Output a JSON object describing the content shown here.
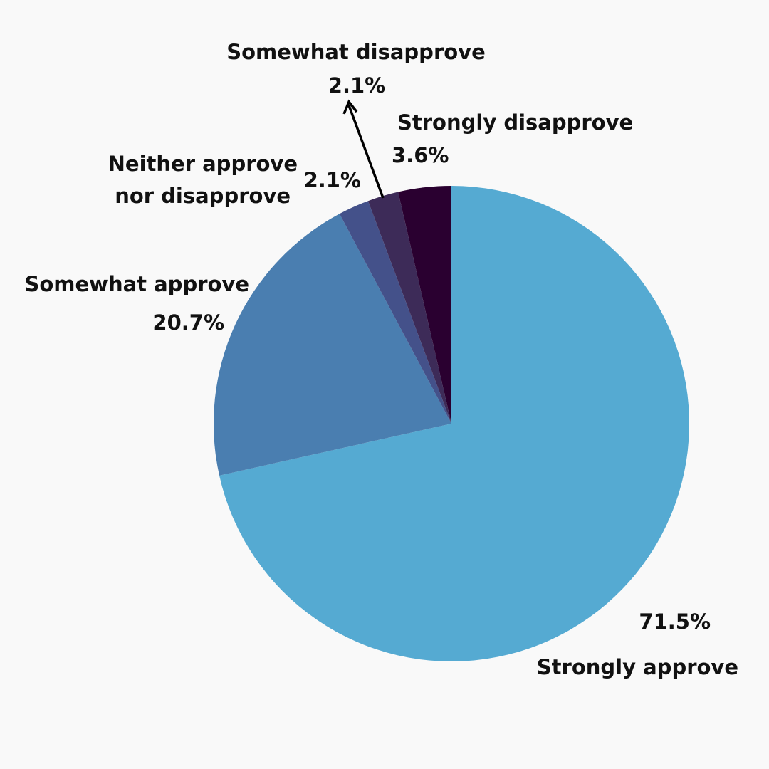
{
  "chart_data": {
    "type": "pie",
    "title": "",
    "start": "top",
    "direction": "clockwise",
    "legend": "none",
    "slices": [
      {
        "label": "Strongly approve",
        "value": 71.5,
        "value_label": "71.5%",
        "color": "#55aad2"
      },
      {
        "label": "Somewhat approve",
        "value": 20.7,
        "value_label": "20.7%",
        "color": "#4a7eb0"
      },
      {
        "label_lines": [
          "Neither approve",
          "nor disapprove"
        ],
        "value": 2.1,
        "value_label": "2.1%",
        "color": "#44518a"
      },
      {
        "label": "Somewhat disapprove",
        "value": 2.1,
        "value_label": "2.1%",
        "color": "#3d2b58"
      },
      {
        "label": "Strongly disapprove",
        "value": 3.6,
        "value_label": "3.6%",
        "color": "#2a0030"
      }
    ]
  }
}
